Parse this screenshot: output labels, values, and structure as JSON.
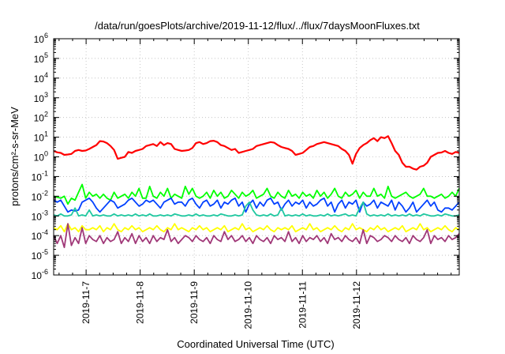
{
  "chart_data": {
    "type": "line",
    "title": "/data/run/goesPlots/archive/2019-11-12/flux/../flux/7daysMoonFluxes.txt",
    "xlabel": "Coordinated Universal Time (UTC)",
    "ylabel": "protons/cm²-s-sr-MeV",
    "x_range_days": [
      -0.6,
      6.9
    ],
    "x_ticks": [
      {
        "label": "2019-11-7",
        "day": 0
      },
      {
        "label": "2019-11-8",
        "day": 1
      },
      {
        "label": "2019-11-9",
        "day": 2
      },
      {
        "label": "2019-11-10",
        "day": 3
      },
      {
        "label": "2019-11-11",
        "day": 4
      },
      {
        "label": "2019-11-12",
        "day": 5
      }
    ],
    "y_scale": "log",
    "ylim": [
      1e-06,
      1000000.0
    ],
    "y_ticks": [
      {
        "base": "10",
        "exp": "-6",
        "value": 1e-06
      },
      {
        "base": "10",
        "exp": "-5",
        "value": 1e-05
      },
      {
        "base": "10",
        "exp": "-4",
        "value": 0.0001
      },
      {
        "base": "10",
        "exp": "-3",
        "value": 0.001
      },
      {
        "base": "10",
        "exp": "-2",
        "value": 0.01
      },
      {
        "base": "10",
        "exp": "-1",
        "value": 0.1
      },
      {
        "base": "10",
        "exp": "0",
        "value": 1
      },
      {
        "base": "10",
        "exp": "1",
        "value": 10
      },
      {
        "base": "10",
        "exp": "2",
        "value": 100
      },
      {
        "base": "10",
        "exp": "3",
        "value": 1000
      },
      {
        "base": "10",
        "exp": "4",
        "value": 10000
      },
      {
        "base": "10",
        "exp": "5",
        "value": 100000
      },
      {
        "base": "10",
        "exp": "6",
        "value": 1000000
      }
    ],
    "grid": true,
    "legend": "none",
    "series": [
      {
        "color": "#ff0000",
        "log10_values": [
          0.3,
          0.23,
          0.2,
          0.1,
          0.12,
          0.15,
          0.3,
          0.35,
          0.3,
          0.32,
          0.4,
          0.5,
          0.6,
          0.8,
          0.78,
          0.7,
          0.55,
          0.35,
          -0.1,
          -0.05,
          0.0,
          0.25,
          0.2,
          0.3,
          0.35,
          0.4,
          0.55,
          0.6,
          0.65,
          0.55,
          0.75,
          0.6,
          0.7,
          0.65,
          0.4,
          0.35,
          0.3,
          0.32,
          0.35,
          0.45,
          0.7,
          0.75,
          0.65,
          0.7,
          0.8,
          0.82,
          0.75,
          0.6,
          0.55,
          0.45,
          0.35,
          0.4,
          0.2,
          0.25,
          0.3,
          0.35,
          0.4,
          0.55,
          0.6,
          0.65,
          0.7,
          0.75,
          0.72,
          0.6,
          0.5,
          0.45,
          0.4,
          0.3,
          0.1,
          0.15,
          0.2,
          0.35,
          0.5,
          0.55,
          0.65,
          0.7,
          0.75,
          0.7,
          0.65,
          0.6,
          0.55,
          0.4,
          0.3,
          0.1,
          -0.35,
          0.15,
          0.45,
          0.6,
          0.7,
          0.85,
          0.95,
          0.8,
          1.0,
          0.95,
          1.05,
          0.7,
          0.3,
          0.1,
          -0.3,
          -0.5,
          -0.5,
          -0.6,
          -0.65,
          -0.5,
          -0.45,
          -0.3,
          0.0,
          0.1,
          0.2,
          0.22,
          0.3,
          0.2,
          0.15,
          0.25,
          0.2
        ]
      },
      {
        "color": "#00ff00",
        "log10_values": [
          -2.0,
          -2.05,
          -2.1,
          -2.0,
          -2.4,
          -2.1,
          -2.2,
          -1.8,
          -1.4,
          -2.1,
          -1.8,
          -2.0,
          -1.9,
          -2.1,
          -1.9,
          -2.1,
          -2.2,
          -1.8,
          -2.1,
          -2.0,
          -1.9,
          -2.1,
          -1.8,
          -2.0,
          -1.6,
          -2.1,
          -2.1,
          -1.5,
          -2.0,
          -2.1,
          -1.8,
          -2.0,
          -1.6,
          -2.1,
          -1.9,
          -2.0,
          -2.1,
          -1.5,
          -1.9,
          -1.6,
          -2.0,
          -2.1,
          -2.0,
          -1.8,
          -2.1,
          -1.7,
          -2.0,
          -1.8,
          -2.1,
          -2.0,
          -1.7,
          -1.9,
          -2.1,
          -1.8,
          -2.0,
          -1.9,
          -1.7,
          -2.1,
          -2.0,
          -1.9,
          -1.6,
          -2.0,
          -2.1,
          -1.8,
          -2.0,
          -2.1,
          -1.7,
          -2.0,
          -1.9,
          -2.1,
          -1.8,
          -2.0,
          -1.9,
          -2.1,
          -1.7,
          -2.0,
          -1.8,
          -2.1,
          -1.9,
          -1.6,
          -2.0,
          -2.1,
          -1.8,
          -2.0,
          -1.9,
          -1.7,
          -2.1,
          -1.8,
          -2.0,
          -2.0,
          -1.6,
          -2.0,
          -1.9,
          -2.1,
          -1.5,
          -2.0,
          -2.1,
          -2.0,
          -1.9,
          -1.8,
          -2.0,
          -2.1,
          -2.0,
          -1.9,
          -1.6,
          -2.0,
          -2.0,
          -2.1,
          -2.0,
          -1.9,
          -2.1,
          -2.0,
          -1.8,
          -2.0,
          -1.6
        ]
      },
      {
        "color": "#0040ff",
        "log10_values": [
          -2.2,
          -2.3,
          -2.2,
          -2.5,
          -2.8,
          -2.7,
          -2.75,
          -2.7,
          -2.3,
          -2.2,
          -2.1,
          -2.3,
          -2.6,
          -2.8,
          -2.6,
          -2.4,
          -2.2,
          -2.3,
          -2.6,
          -2.5,
          -2.4,
          -2.2,
          -2.1,
          -2.3,
          -2.5,
          -2.4,
          -2.2,
          -2.3,
          -2.2,
          -2.4,
          -2.6,
          -2.3,
          -2.2,
          -2.1,
          -2.4,
          -2.3,
          -2.3,
          -2.5,
          -2.2,
          -2.1,
          -2.4,
          -2.6,
          -2.3,
          -2.2,
          -2.5,
          -2.4,
          -2.2,
          -2.6,
          -2.3,
          -2.4,
          -2.2,
          -2.1,
          -2.5,
          -2.3,
          -2.8,
          -2.4,
          -2.2,
          -2.6,
          -2.3,
          -2.5,
          -2.2,
          -2.1,
          -2.4,
          -2.3,
          -2.7,
          -2.4,
          -2.2,
          -2.5,
          -2.3,
          -2.4,
          -2.2,
          -2.6,
          -2.3,
          -2.5,
          -2.4,
          -2.2,
          -2.1,
          -2.5,
          -2.3,
          -2.8,
          -2.4,
          -2.2,
          -2.6,
          -2.3,
          -2.4,
          -2.2,
          -2.8,
          -2.3,
          -2.5,
          -2.4,
          -2.2,
          -2.6,
          -2.3,
          -2.4,
          -2.5,
          -2.2,
          -2.7,
          -2.3,
          -2.5,
          -2.8,
          -2.6,
          -2.3,
          -2.8,
          -2.6,
          -2.4,
          -2.2,
          -2.5,
          -2.3,
          -2.7,
          -2.8,
          -2.6,
          -2.6,
          -2.7,
          -2.5,
          -2.3
        ]
      },
      {
        "color": "#20c8a0",
        "log10_values": [
          -2.95,
          -3.0,
          -2.9,
          -3.0,
          -3.0,
          -2.95,
          -2.6,
          -3.0,
          -2.95,
          -3.0,
          -2.7,
          -3.0,
          -2.95,
          -3.0,
          -2.95,
          -3.0,
          -3.0,
          -2.9,
          -3.0,
          -2.95,
          -3.0,
          -2.95,
          -3.0,
          -2.9,
          -3.0,
          -2.95,
          -3.0,
          -2.9,
          -3.0,
          -3.0,
          -2.95,
          -3.0,
          -2.95,
          -3.0,
          -2.9,
          -2.95,
          -3.0,
          -3.0,
          -2.95,
          -3.0,
          -2.9,
          -3.0,
          -2.95,
          -3.0,
          -3.0,
          -2.95,
          -3.0,
          -2.9,
          -2.95,
          -3.0,
          -3.0,
          -2.95,
          -3.0,
          -2.95,
          -2.5,
          -2.3,
          -2.7,
          -2.95,
          -3.0,
          -2.95,
          -3.0,
          -2.9,
          -3.0,
          -2.95,
          -2.6,
          -3.0,
          -2.95,
          -3.0,
          -2.95,
          -3.0,
          -2.9,
          -3.0,
          -2.95,
          -3.0,
          -3.0,
          -2.95,
          -3.0,
          -2.9,
          -3.0,
          -2.95,
          -3.0,
          -2.95,
          -2.9,
          -3.0,
          -2.95,
          -3.0,
          -2.6,
          -2.3,
          -2.9,
          -3.0,
          -2.95,
          -3.0,
          -2.95,
          -3.0,
          -2.9,
          -3.0,
          -2.95,
          -3.0,
          -2.95,
          -3.0,
          -2.9,
          -3.0,
          -2.95,
          -3.0,
          -2.9,
          -2.95,
          -3.0,
          -3.0,
          -2.95,
          -3.0,
          -2.9,
          -2.95,
          -3.0,
          -3.0,
          -2.95
        ]
      },
      {
        "color": "#ffff00",
        "log10_values": [
          -3.6,
          -3.7,
          -3.5,
          -3.8,
          -3.4,
          -3.7,
          -3.6,
          -3.8,
          -3.5,
          -3.7,
          -3.7,
          -3.6,
          -3.7,
          -3.5,
          -3.8,
          -3.6,
          -3.7,
          -3.4,
          -3.7,
          -3.8,
          -3.6,
          -3.7,
          -3.5,
          -3.7,
          -3.6,
          -3.8,
          -3.7,
          -3.6,
          -3.7,
          -3.5,
          -3.7,
          -3.8,
          -3.6,
          -3.7,
          -3.4,
          -3.7,
          -3.6,
          -3.7,
          -3.8,
          -3.6,
          -3.7,
          -3.5,
          -3.7,
          -3.6,
          -3.8,
          -3.7,
          -3.6,
          -3.7,
          -3.5,
          -3.8,
          -3.7,
          -3.6,
          -3.7,
          -3.4,
          -3.7,
          -3.6,
          -3.8,
          -3.7,
          -3.6,
          -3.7,
          -3.5,
          -3.7,
          -3.8,
          -3.6,
          -3.7,
          -3.6,
          -3.7,
          -3.5,
          -3.8,
          -3.7,
          -3.6,
          -3.7,
          -3.4,
          -3.7,
          -3.6,
          -3.8,
          -3.7,
          -3.6,
          -3.7,
          -3.5,
          -3.7,
          -3.8,
          -3.6,
          -3.7,
          -3.4,
          -3.7,
          -3.6,
          -3.7,
          -3.8,
          -3.6,
          -3.7,
          -3.5,
          -3.7,
          -3.6,
          -3.8,
          -3.7,
          -3.6,
          -3.7,
          -3.5,
          -3.8,
          -3.7,
          -3.6,
          -3.7,
          -3.4,
          -3.7,
          -3.6,
          -3.8,
          -3.7,
          -3.6,
          -3.7,
          -3.5,
          -3.7,
          -3.8,
          -3.6,
          -3.7
        ]
      },
      {
        "color": "#a03878",
        "log10_values": [
          -4.0,
          -4.4,
          -4.0,
          -4.6,
          -3.4,
          -4.5,
          -4.1,
          -4.4,
          -3.6,
          -4.4,
          -4.0,
          -4.2,
          -4.3,
          -4.0,
          -4.4,
          -4.1,
          -4.3,
          -4.2,
          -3.8,
          -4.4,
          -4.1,
          -4.3,
          -3.9,
          -4.4,
          -4.0,
          -4.3,
          -4.1,
          -4.4,
          -4.0,
          -4.3,
          -4.1,
          -4.2,
          -3.7,
          -4.3,
          -4.1,
          -4.4,
          -4.2,
          -4.0,
          -4.1,
          -4.3,
          -4.0,
          -4.2,
          -4.3,
          -4.1,
          -4.4,
          -4.0,
          -4.2,
          -4.3,
          -3.8,
          -4.2,
          -4.0,
          -4.3,
          -4.2,
          -4.0,
          -4.3,
          -4.1,
          -4.4,
          -4.0,
          -4.2,
          -4.3,
          -4.1,
          -4.4,
          -4.0,
          -4.2,
          -4.1,
          -4.3,
          -3.8,
          -4.3,
          -4.1,
          -4.4,
          -4.0,
          -4.3,
          -4.1,
          -4.2,
          -4.0,
          -4.3,
          -4.1,
          -4.4,
          -3.9,
          -4.2,
          -4.1,
          -4.3,
          -4.0,
          -4.2,
          -4.3,
          -4.1,
          -4.4,
          -3.7,
          -4.4,
          -4.0,
          -4.1,
          -4.3,
          -4.2,
          -4.0,
          -4.1,
          -4.3,
          -4.0,
          -4.2,
          -4.3,
          -4.1,
          -4.4,
          -4.0,
          -4.2,
          -4.3,
          -4.1,
          -3.7,
          -4.4,
          -4.0,
          -4.2,
          -4.1,
          -4.3,
          -4.0,
          -4.2,
          -4.1,
          -3.9
        ]
      }
    ]
  }
}
